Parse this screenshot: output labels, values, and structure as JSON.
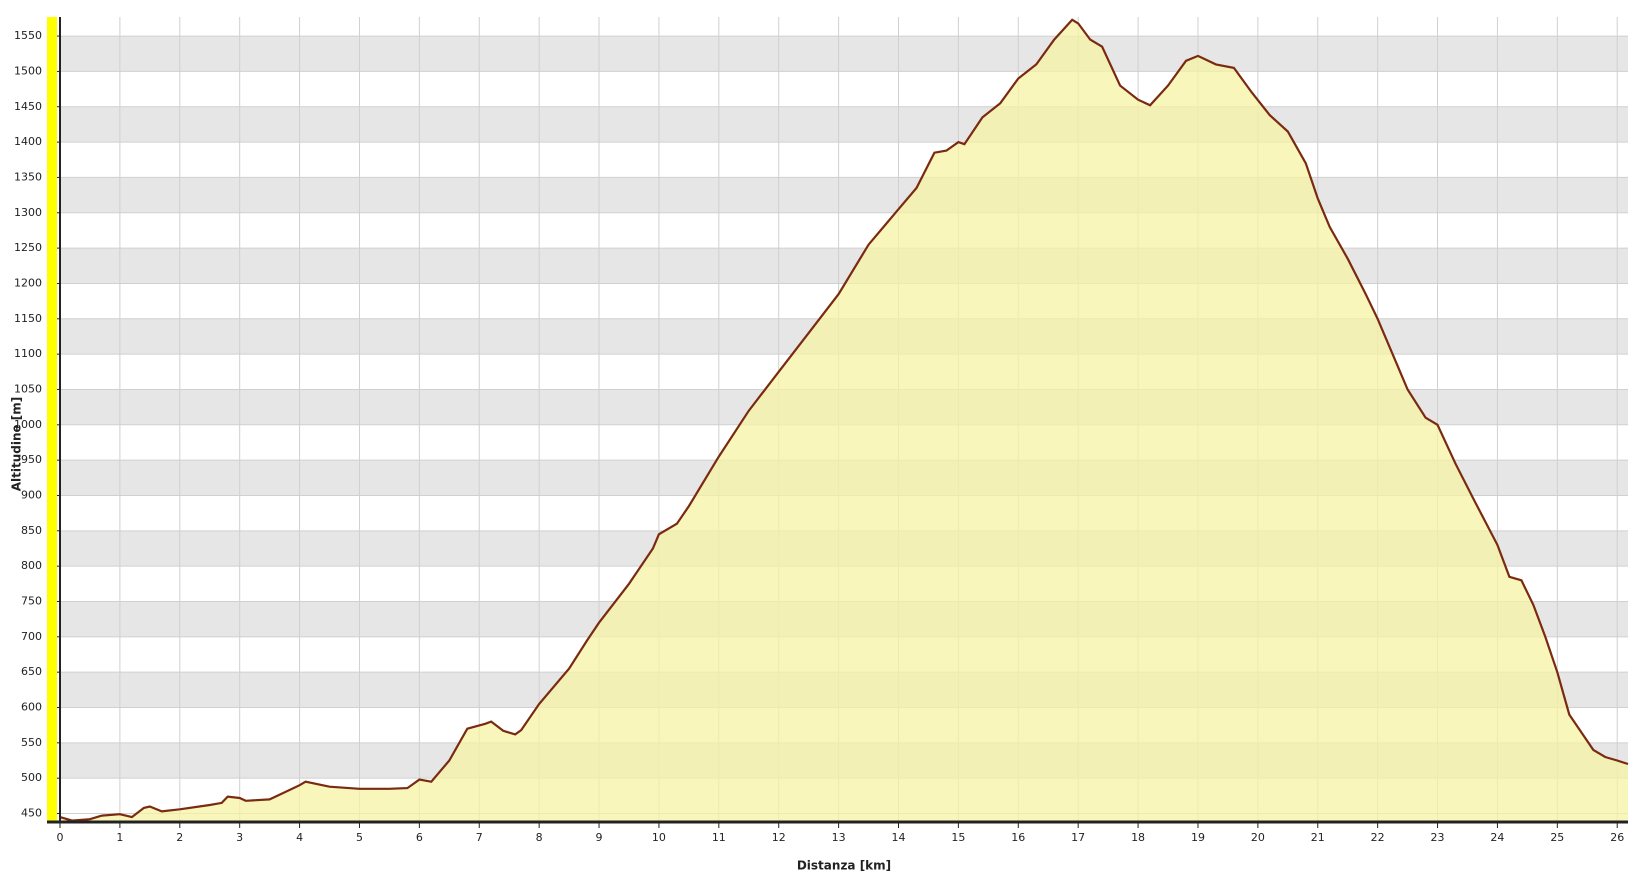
{
  "chart_data": {
    "type": "area",
    "x_label": "Distanza [km]",
    "y_label": "Altitudine [m]",
    "x": [
      0,
      0.2,
      0.5,
      0.7,
      1.0,
      1.2,
      1.4,
      1.5,
      1.7,
      2.0,
      2.5,
      2.7,
      2.8,
      3.0,
      3.1,
      3.5,
      3.7,
      4.0,
      4.1,
      4.5,
      5.0,
      5.5,
      5.8,
      6.0,
      6.2,
      6.5,
      6.8,
      7.1,
      7.2,
      7.4,
      7.6,
      7.7,
      8.0,
      8.5,
      8.8,
      9.0,
      9.5,
      9.9,
      10.0,
      10.3,
      10.5,
      11.0,
      11.5,
      12.0,
      12.5,
      13.0,
      13.5,
      14.0,
      14.3,
      14.6,
      14.8,
      15.0,
      15.1,
      15.4,
      15.7,
      16.0,
      16.3,
      16.6,
      16.9,
      17.0,
      17.2,
      17.4,
      17.7,
      18.0,
      18.2,
      18.5,
      18.8,
      19.0,
      19.3,
      19.6,
      19.9,
      20.2,
      20.5,
      20.8,
      21.0,
      21.2,
      21.5,
      21.8,
      22.0,
      22.3,
      22.5,
      22.8,
      23.0,
      23.3,
      23.6,
      24.0,
      24.2,
      24.4,
      24.6,
      24.8,
      25.0,
      25.2,
      25.4,
      25.6,
      25.8,
      26.0,
      26.18
    ],
    "values": [
      445,
      440,
      442,
      447,
      449,
      445,
      458,
      460,
      453,
      456,
      462,
      465,
      474,
      472,
      468,
      470,
      478,
      490,
      495,
      488,
      485,
      485,
      486,
      498,
      495,
      525,
      570,
      577,
      580,
      567,
      562,
      568,
      605,
      655,
      695,
      720,
      775,
      825,
      845,
      860,
      885,
      955,
      1020,
      1075,
      1130,
      1185,
      1255,
      1305,
      1335,
      1385,
      1388,
      1400,
      1397,
      1435,
      1455,
      1490,
      1510,
      1545,
      1573,
      1568,
      1545,
      1535,
      1480,
      1460,
      1452,
      1480,
      1515,
      1522,
      1510,
      1505,
      1470,
      1438,
      1415,
      1370,
      1320,
      1280,
      1235,
      1185,
      1150,
      1090,
      1050,
      1010,
      1000,
      945,
      895,
      830,
      785,
      780,
      745,
      700,
      650,
      590,
      565,
      540,
      530,
      525,
      520
    ],
    "color": "#7a2a10",
    "fill_color": "#f7f3a6",
    "xlim": [
      0,
      26.18
    ],
    "ylim": [
      438,
      1577
    ],
    "xticks": [
      0,
      1,
      2,
      3,
      4,
      5,
      6,
      7,
      8,
      9,
      10,
      11,
      12,
      13,
      14,
      15,
      16,
      17,
      18,
      19,
      20,
      21,
      22,
      23,
      24,
      25,
      26
    ],
    "yticks": [
      450,
      500,
      550,
      600,
      650,
      700,
      750,
      800,
      850,
      900,
      950,
      1000,
      1050,
      1100,
      1150,
      1200,
      1250,
      1300,
      1350,
      1400,
      1450,
      1500,
      1550
    ],
    "grid": true
  }
}
